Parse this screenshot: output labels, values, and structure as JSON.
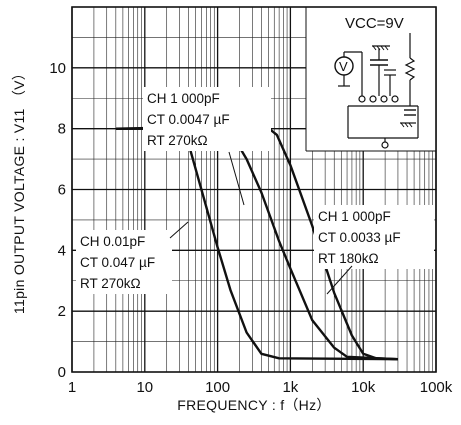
{
  "chart_data": {
    "type": "line",
    "xscale": "log",
    "xlim": [
      1,
      100000
    ],
    "ylim": [
      0,
      12
    ],
    "grid": true,
    "xlabel": "FREQUENCY : f（Hz）",
    "ylabel": "11pin  OUTPUT  VOLTAGE : V11  （V）",
    "x_ticks": [
      {
        "value": 1,
        "label": "1"
      },
      {
        "value": 10,
        "label": "10"
      },
      {
        "value": 100,
        "label": "100"
      },
      {
        "value": 1000,
        "label": "1k"
      },
      {
        "value": 10000,
        "label": "10k"
      },
      {
        "value": 100000,
        "label": "100k"
      }
    ],
    "y_ticks": [
      {
        "value": 0,
        "label": "0"
      },
      {
        "value": 2,
        "label": "2"
      },
      {
        "value": 4,
        "label": "4"
      },
      {
        "value": 6,
        "label": "6"
      },
      {
        "value": 8,
        "label": "8"
      },
      {
        "value": 10,
        "label": "10"
      }
    ],
    "series": [
      {
        "annotation": [
          "CH 0.01pF",
          "CT 0.047 µF",
          "RT 270kΩ"
        ],
        "points": [
          [
            4,
            8.0
          ],
          [
            20,
            8.0
          ],
          [
            30,
            7.95
          ],
          [
            40,
            7.5
          ],
          [
            60,
            6.0
          ],
          [
            100,
            4.1
          ],
          [
            150,
            2.7
          ],
          [
            250,
            1.3
          ],
          [
            400,
            0.6
          ],
          [
            700,
            0.45
          ],
          [
            30000,
            0.42
          ]
        ]
      },
      {
        "annotation": [
          "CH 1 000pF",
          "CT 0.0047 µF",
          "RT 270kΩ"
        ],
        "points": [
          [
            4,
            8.0
          ],
          [
            100,
            8.0
          ],
          [
            150,
            7.9
          ],
          [
            250,
            7.0
          ],
          [
            400,
            5.9
          ],
          [
            700,
            4.3
          ],
          [
            1000,
            3.4
          ],
          [
            2000,
            1.7
          ],
          [
            4000,
            0.8
          ],
          [
            6000,
            0.5
          ],
          [
            30000,
            0.42
          ]
        ]
      },
      {
        "annotation": [
          "CH 1 000pF",
          "CT 0.0033 µF",
          "RT 180kΩ"
        ],
        "points": [
          [
            4,
            8.0
          ],
          [
            450,
            8.1
          ],
          [
            650,
            7.8
          ],
          [
            1000,
            6.8
          ],
          [
            2000,
            4.8
          ],
          [
            4000,
            2.6
          ],
          [
            7000,
            1.2
          ],
          [
            10000,
            0.6
          ],
          [
            15000,
            0.45
          ],
          [
            30000,
            0.42
          ]
        ]
      }
    ],
    "annotations": [
      {
        "lines": [
          "CH 1 000pF",
          "CT 0.0047 µF",
          "RT 270kΩ"
        ]
      },
      {
        "lines": [
          "CH 0.01pF",
          "CT 0.047 µF",
          "RT 270kΩ"
        ]
      },
      {
        "lines": [
          "CH 1 000pF",
          "CT 0.0033 µF",
          "RT 180kΩ"
        ]
      }
    ],
    "inset": {
      "supply_label": "VCC=9V",
      "meter_symbol": "V"
    }
  }
}
